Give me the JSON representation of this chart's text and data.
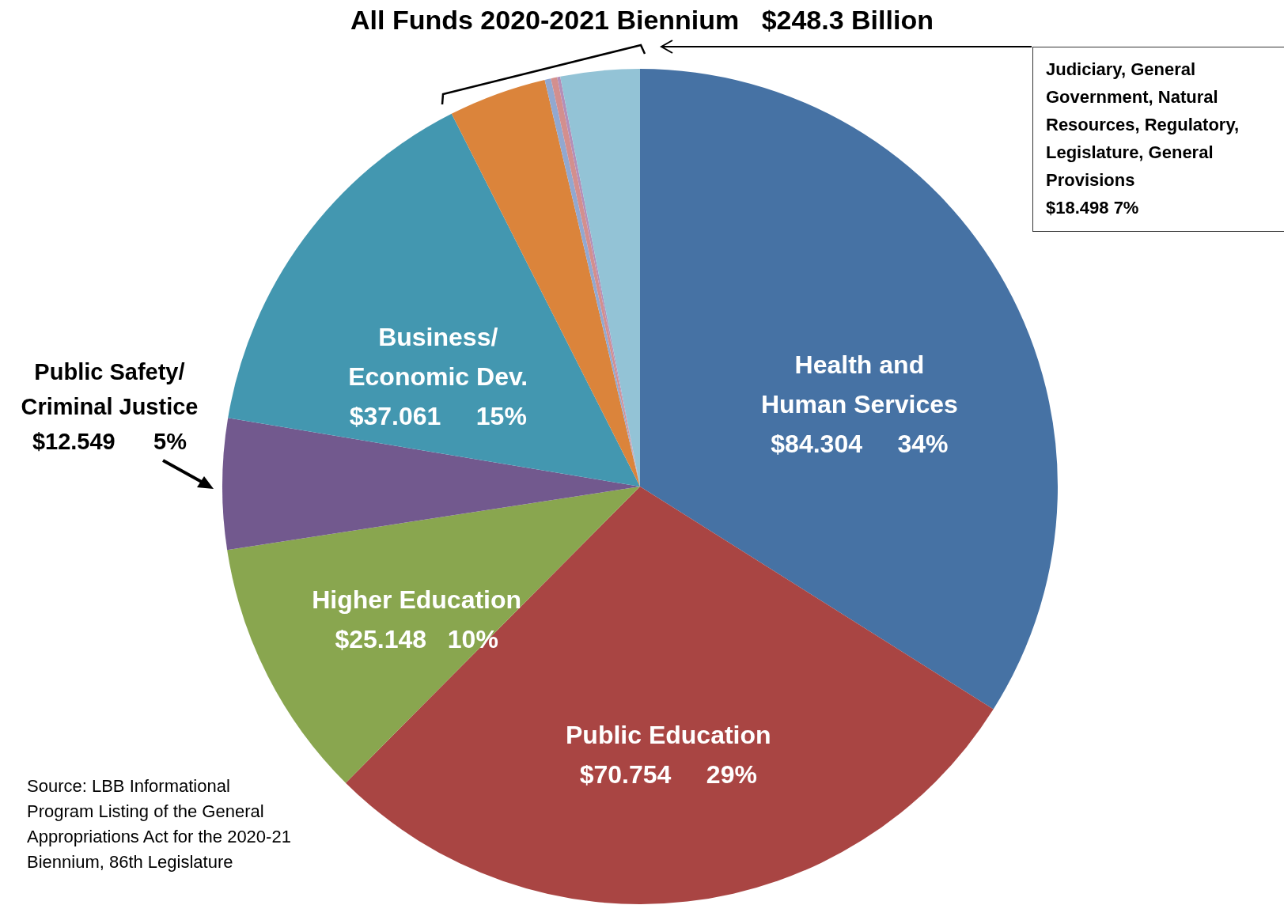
{
  "chart_data": {
    "type": "pie",
    "title": "All Funds 2020-2021 Biennium   $248.3 Billion",
    "categories": [
      "Health and\nHuman Services",
      "Public Education",
      "Higher Education",
      "Public Safety/\nCriminal Justice",
      "Business/\nEconomic Dev.",
      null,
      null,
      null,
      null,
      null
    ],
    "values": [
      84.304,
      70.754,
      25.148,
      12.549,
      37.061,
      9.4,
      0.6,
      0.6,
      0.3,
      7.598
    ],
    "colors": [
      "#4672a4",
      "#a94543",
      "#89a64f",
      "#72598e",
      "#4397b0",
      "#db843b",
      "#92a8d0",
      "#d38f8e",
      "#b48fb8",
      "#93c3d6"
    ],
    "value_labels": [
      "$84.304     34%",
      "$70.754     29%",
      "$25.148   10%",
      "$12.549      5%",
      "$37.061     15%",
      null,
      null,
      null,
      null,
      null
    ],
    "annotations": [
      "Judiciary,  General Government, Natural Resources,  Regulatory, Legislature, General Provisions\n$18.498           7%",
      "Source:  LBB Informational Program Listing of the General Appropriations Act for the 2020-21 Biennium, 86th Legislature"
    ]
  }
}
